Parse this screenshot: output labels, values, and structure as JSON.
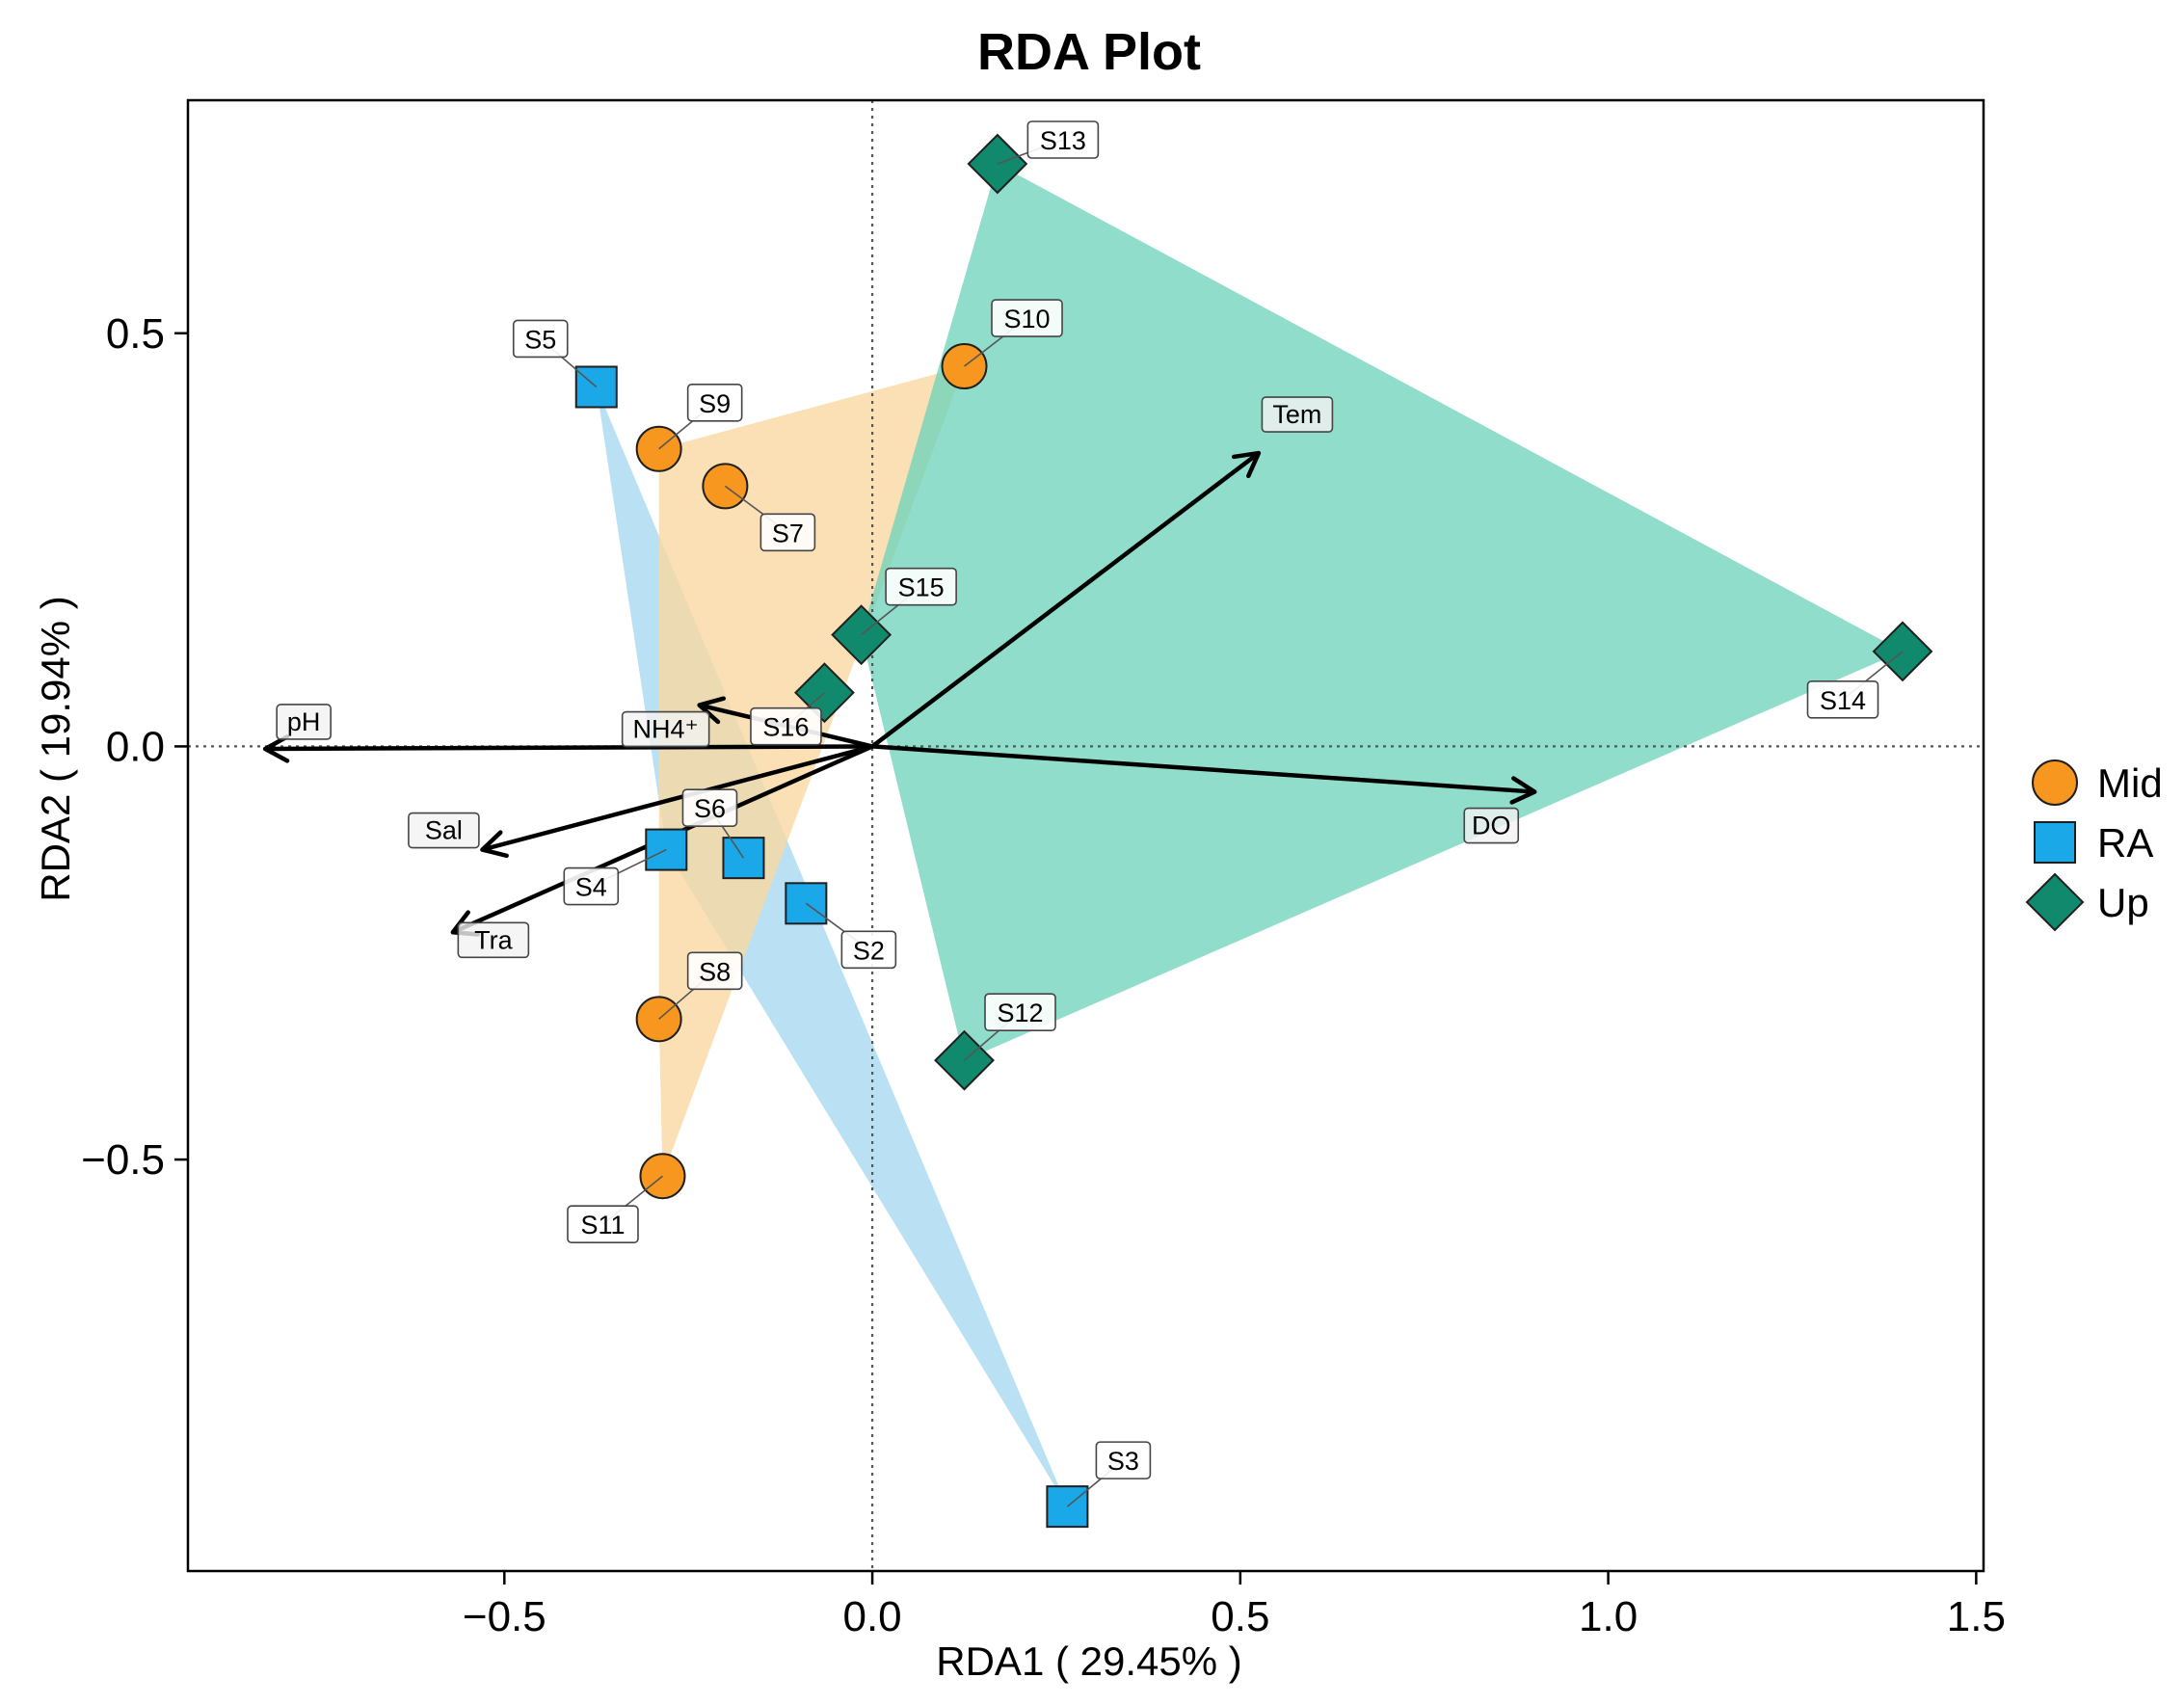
{
  "chart_data": {
    "type": "scatter",
    "title": "RDA Plot",
    "xlabel": "RDA1 ( 29.45% )",
    "ylabel": "RDA2 ( 19.94% )",
    "xlim": [
      -0.93,
      1.51
    ],
    "ylim": [
      -0.998,
      0.782
    ],
    "xticks": [
      {
        "value": -0.5,
        "label": "−0.5"
      },
      {
        "value": 0.0,
        "label": "0.0"
      },
      {
        "value": 0.5,
        "label": "0.5"
      },
      {
        "value": 1.0,
        "label": "1.0"
      },
      {
        "value": 1.5,
        "label": "1.5"
      }
    ],
    "yticks": [
      {
        "value": 0.5,
        "label": "0.5"
      },
      {
        "value": 0.0,
        "label": "0.0"
      },
      {
        "value": -0.5,
        "label": "−0.5"
      }
    ],
    "groups": [
      {
        "name": "Mid",
        "shape": "circle",
        "color": "#f7971f",
        "hull_color": "#fad7a0"
      },
      {
        "name": "RA",
        "shape": "square",
        "color": "#1aa8e8",
        "hull_color": "#a7d8f0"
      },
      {
        "name": "Up",
        "shape": "diamond",
        "color": "#11896c",
        "hull_color": "#6fd3bb"
      }
    ],
    "samples": [
      {
        "id": "S2",
        "group": "RA",
        "x": -0.09,
        "y": -0.19
      },
      {
        "id": "S3",
        "group": "RA",
        "x": 0.265,
        "y": -0.92
      },
      {
        "id": "S4",
        "group": "RA",
        "x": -0.28,
        "y": -0.125
      },
      {
        "id": "S5",
        "group": "RA",
        "x": -0.375,
        "y": 0.435
      },
      {
        "id": "S6",
        "group": "RA",
        "x": -0.175,
        "y": -0.135
      },
      {
        "id": "S7",
        "group": "Mid",
        "x": -0.2,
        "y": 0.315
      },
      {
        "id": "S8",
        "group": "Mid",
        "x": -0.29,
        "y": -0.33
      },
      {
        "id": "S9",
        "group": "Mid",
        "x": -0.29,
        "y": 0.36
      },
      {
        "id": "S10",
        "group": "Mid",
        "x": 0.125,
        "y": 0.46
      },
      {
        "id": "S11",
        "group": "Mid",
        "x": -0.285,
        "y": -0.52
      },
      {
        "id": "S12",
        "group": "Up",
        "x": 0.125,
        "y": -0.38
      },
      {
        "id": "S13",
        "group": "Up",
        "x": 0.17,
        "y": 0.705
      },
      {
        "id": "S14",
        "group": "Up",
        "x": 1.4,
        "y": 0.115
      },
      {
        "id": "S15",
        "group": "Up",
        "x": -0.015,
        "y": 0.135
      },
      {
        "id": "S16",
        "group": "Up",
        "x": -0.065,
        "y": 0.065
      }
    ],
    "env_vectors": [
      {
        "name": "pH",
        "x": -0.825,
        "y": -0.003
      },
      {
        "name": "NH4⁺",
        "x": -0.235,
        "y": 0.05
      },
      {
        "name": "Sal",
        "x": -0.53,
        "y": -0.125
      },
      {
        "name": "Tra",
        "x": -0.57,
        "y": -0.225
      },
      {
        "name": "Tem",
        "x": 0.525,
        "y": 0.355
      },
      {
        "name": "DO",
        "x": 0.9,
        "y": -0.055
      }
    ],
    "legend_position": "right"
  }
}
